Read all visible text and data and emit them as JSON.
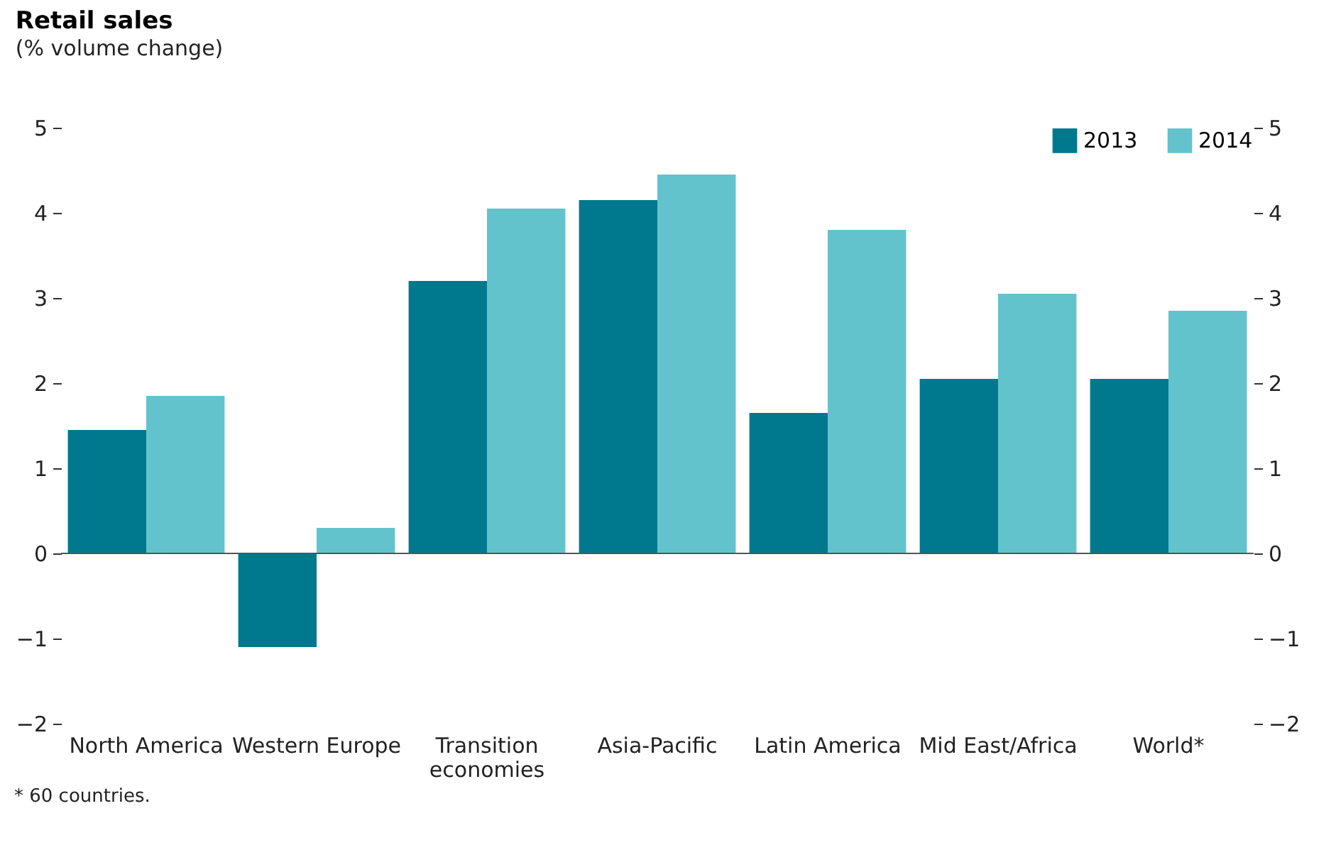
{
  "chart_data": {
    "type": "bar",
    "title": "Retail sales",
    "subtitle": "(% volume change)",
    "categories": [
      "North America",
      "Western Europe",
      "Transition economies",
      "Asia-Pacific",
      "Latin America",
      "Mid East/Africa",
      "World*"
    ],
    "series": [
      {
        "name": "2013",
        "color": "#00788d",
        "values": [
          1.45,
          -1.1,
          3.2,
          4.15,
          1.65,
          2.05,
          2.05
        ]
      },
      {
        "name": "2014",
        "color": "#63c3cc",
        "values": [
          1.85,
          0.3,
          4.05,
          4.45,
          3.8,
          3.05,
          2.85
        ]
      }
    ],
    "ylim": [
      -2,
      5
    ],
    "yticks": [
      -2,
      -1,
      0,
      1,
      2,
      3,
      4,
      5
    ],
    "y2lim": [
      -2,
      5
    ],
    "y2ticks": [
      -2,
      -1,
      0,
      1,
      2,
      3,
      4,
      5
    ],
    "ref_lines": [
      {
        "axis": "y",
        "value": 0
      }
    ],
    "legend": "top right",
    "annotations": [
      "* 60 countries."
    ]
  }
}
